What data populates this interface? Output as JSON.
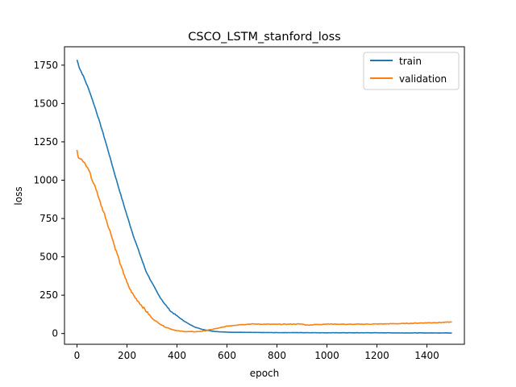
{
  "chart_data": {
    "type": "line",
    "title": "CSCO_LSTM_stanford_loss",
    "xlabel": "epoch",
    "ylabel": "loss",
    "xlim": [
      -50,
      1550
    ],
    "ylim": [
      -70,
      1870
    ],
    "x_ticks": [
      0,
      200,
      400,
      600,
      800,
      1000,
      1200,
      1400
    ],
    "x_tick_labels": [
      "0",
      "200",
      "400",
      "600",
      "800",
      "1000",
      "1200",
      "1400"
    ],
    "y_ticks": [
      0,
      250,
      500,
      750,
      1000,
      1250,
      1500,
      1750
    ],
    "y_tick_labels": [
      "0",
      "250",
      "500",
      "750",
      "1000",
      "1250",
      "1500",
      "1750"
    ],
    "grid": false,
    "legend": {
      "position": "upper-right"
    },
    "series": [
      {
        "name": "train",
        "color": "#1f77b4",
        "x": [
          0,
          10,
          25,
          50,
          75,
          100,
          125,
          150,
          175,
          200,
          225,
          250,
          275,
          300,
          325,
          350,
          375,
          400,
          425,
          450,
          475,
          500,
          525,
          550,
          575,
          600,
          650,
          700,
          800,
          900,
          1000,
          1100,
          1200,
          1300,
          1400,
          1500
        ],
        "y": [
          1785,
          1730,
          1680,
          1580,
          1460,
          1330,
          1190,
          1045,
          905,
          770,
          640,
          525,
          410,
          330,
          255,
          195,
          145,
          115,
          85,
          60,
          40,
          28,
          20,
          14,
          11,
          9,
          8,
          7,
          6,
          6,
          5,
          5,
          5,
          4,
          4,
          4
        ]
      },
      {
        "name": "validation",
        "color": "#ff7f0e",
        "x": [
          0,
          5,
          15,
          30,
          50,
          60,
          75,
          90,
          100,
          110,
          125,
          140,
          150,
          165,
          175,
          190,
          200,
          215,
          230,
          245,
          260,
          275,
          290,
          300,
          325,
          350,
          375,
          400,
          425,
          450,
          475,
          500,
          525,
          550,
          575,
          600,
          650,
          700,
          800,
          900,
          920,
          950,
          1000,
          1100,
          1200,
          1300,
          1400,
          1450,
          1500
        ],
        "y": [
          1200,
          1150,
          1140,
          1110,
          1060,
          1000,
          950,
          870,
          820,
          780,
          700,
          630,
          570,
          500,
          440,
          380,
          330,
          280,
          240,
          210,
          180,
          150,
          120,
          100,
          70,
          45,
          30,
          18,
          14,
          12,
          12,
          15,
          22,
          30,
          38,
          48,
          58,
          62,
          60,
          62,
          55,
          58,
          62,
          60,
          62,
          65,
          70,
          72,
          75
        ]
      }
    ]
  }
}
